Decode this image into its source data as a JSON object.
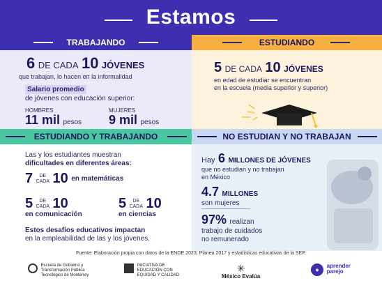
{
  "title": "Estamos",
  "trabajando": {
    "header": "TRABAJANDO",
    "num1": "6",
    "de_cada": "DE CADA",
    "num2": "10",
    "jovenes": "JÓVENES",
    "sub": "que trabajan, lo hacen en la informalidad",
    "salario1": "Salario promedio",
    "salario2": "de jóvenes con educación superior:",
    "hombres_label": "HOMBRES",
    "hombres_value": "11 mil",
    "hombres_unit": "pesos",
    "mujeres_label": "MUJERES",
    "mujeres_value": "9 mil",
    "mujeres_unit": "pesos"
  },
  "estudiando": {
    "header": "ESTUDIANDO",
    "num1": "5",
    "de_cada": "DE CADA",
    "num2": "10",
    "jovenes": "JÓVENES",
    "sub1": "en edad de estudiar se encuentran",
    "sub2": "en la escuela (media superior y superior)"
  },
  "estudiando_trabajando": {
    "header": "ESTUDIANDO Y TRABAJANDO",
    "intro1": "Las y los estudiantes muestran",
    "intro2": "dificultades en diferentes áreas:",
    "mat_num": "7",
    "mat_de": "DE",
    "mat_cada": "CADA",
    "mat_ten": "10",
    "mat_label": "en matemáticas",
    "com_num": "5",
    "com_de": "DE",
    "com_cada": "CADA",
    "com_ten": "10",
    "com_label": "en comunicación",
    "cie_num": "5",
    "cie_de": "DE",
    "cie_cada": "CADA",
    "cie_ten": "10",
    "cie_label": "en ciencias",
    "outro1": "Estos desafíos educativos impactan",
    "outro2": "en la empleabilidad de las y los jóvenes."
  },
  "no_estudian": {
    "header": "NO ESTUDIAN Y NO TRABAJAN",
    "hay": "Hay",
    "millones_num": "6",
    "millones_label": "MILLONES DE JÓVENES",
    "sub1": "que no estudian y no trabajan",
    "sub2": "en México",
    "mujeres_num": "4.7",
    "mujeres_label": "MILLONES",
    "mujeres_sub": "son mujeres",
    "pct": "97%",
    "pct_label": "realizan",
    "pct_sub1": "trabajo de cuidados",
    "pct_sub2": "no remunerado"
  },
  "source": "Fuente: Elaboración propia con datos de la ENOE 2023, Planea 2017 y estadísticas educativas de la SEP.",
  "logos": {
    "l1a": "Escuela de Gobierno y",
    "l1b": "Transformación Pública",
    "l1c": "Tecnológico de Monterrey",
    "l2a": "INICIATIVA DE",
    "l2b": "EDUCACIÓN CON",
    "l2c": "EQUIDAD Y CALIDAD",
    "l3": "México Evalúa",
    "l4a": "aprender",
    "l4b": "parejo"
  },
  "colors": {
    "primary": "#3d2fb0",
    "orange": "#f5b041",
    "green": "#49c7a0",
    "lightblue": "#c8d8f0",
    "navy": "#1a1760"
  }
}
